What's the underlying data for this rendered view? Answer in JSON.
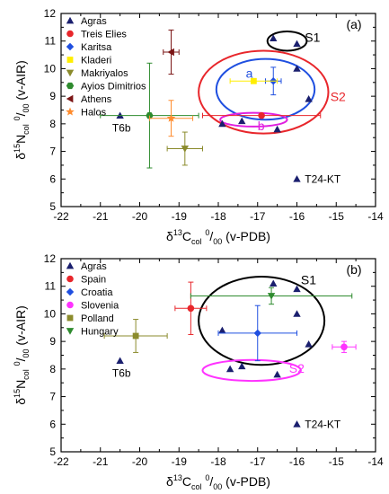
{
  "chart_data": [
    {
      "type": "scatter",
      "panel_label": "(a)",
      "xlabel": "δ13Ccol ‰ (v-PDB)",
      "ylabel": "δ15Ncol ‰ (v-AIR)",
      "xlim": [
        -22,
        -14
      ],
      "ylim": [
        5,
        12
      ],
      "xticks": [
        -22,
        -21,
        -20,
        -19,
        -18,
        -17,
        -16,
        -15,
        -14
      ],
      "yticks": [
        5,
        6,
        7,
        8,
        9,
        10,
        11,
        12
      ],
      "grid": false,
      "legend_position": "top-left",
      "series": [
        {
          "name": "Agras",
          "marker": "triangle",
          "color": "#1a1f6e",
          "points": [
            [
              -16.6,
              11.1
            ],
            [
              -16.0,
              10.9
            ],
            [
              -16.0,
              10.0
            ],
            [
              -15.7,
              8.9
            ],
            [
              -17.9,
              8.0
            ],
            [
              -17.4,
              8.1
            ],
            [
              -16.5,
              7.8
            ],
            [
              -20.5,
              8.3
            ],
            [
              -16.0,
              6.0
            ]
          ]
        },
        {
          "name": "Treis Elies",
          "marker": "circle",
          "color": "#e8262b",
          "points": [
            {
              "x": -16.9,
              "y": 8.3,
              "xerr": 1.5,
              "yerr": 0.0
            }
          ]
        },
        {
          "name": "Karitsa",
          "marker": "diamond",
          "color": "#1f4fe0",
          "points": [
            {
              "x": -16.6,
              "y": 9.55,
              "xerr": 0.2,
              "yerr": 0.5
            }
          ]
        },
        {
          "name": "Kladeri",
          "marker": "square",
          "color": "#ffee00",
          "points": [
            {
              "x": -17.1,
              "y": 9.55,
              "xerr": 0.6,
              "yerr": 0.0
            }
          ]
        },
        {
          "name": "Makriyalos",
          "marker": "triangle-down",
          "color": "#8b8b2c",
          "points": [
            {
              "x": -18.85,
              "y": 7.1,
              "xerr": 0.45,
              "yerr": 0.6
            }
          ]
        },
        {
          "name": "Ayios Dimitrios",
          "marker": "hexagon",
          "color": "#2e8b2e",
          "points": [
            {
              "x": -19.75,
              "y": 8.3,
              "xerr": 1.25,
              "yerr": 1.9
            }
          ]
        },
        {
          "name": "Athens",
          "marker": "triangle-left",
          "color": "#7b1515",
          "points": [
            {
              "x": -19.2,
              "y": 10.6,
              "xerr": 0.2,
              "yerr": 0.8
            }
          ]
        },
        {
          "name": "Halos",
          "marker": "star",
          "color": "#ff8c2e",
          "points": [
            {
              "x": -19.2,
              "y": 8.2,
              "xerr": 0.55,
              "yerr": 0.65
            }
          ]
        }
      ],
      "ellipses": [
        {
          "label": "S1",
          "color": "#000000",
          "cx": -16.25,
          "cy": 11.0,
          "rx": 0.5,
          "ry": 0.35
        },
        {
          "label": "S2",
          "color": "#e8262b",
          "cx": -16.85,
          "cy": 9.15,
          "rx": 1.65,
          "ry": 1.5
        },
        {
          "label": "a",
          "color": "#1f4fe0",
          "cx": -16.8,
          "cy": 9.25,
          "rx": 1.25,
          "ry": 1.1
        },
        {
          "label": "b",
          "color": "#e020e0",
          "cx": -17.1,
          "cy": 8.15,
          "rx": 0.85,
          "ry": 0.25
        }
      ],
      "annotations": [
        {
          "text": "S1",
          "x": -15.8,
          "y": 11.1
        },
        {
          "text": "S2",
          "x": -15.15,
          "y": 8.95
        },
        {
          "text": "a",
          "x": -17.3,
          "y": 9.8
        },
        {
          "text": "b",
          "x": -17.0,
          "y": 7.9
        },
        {
          "text": "T6b",
          "x": -20.7,
          "y": 7.85
        },
        {
          "text": "T24-KT",
          "x": -15.8,
          "y": 6.0
        }
      ]
    },
    {
      "type": "scatter",
      "panel_label": "(b)",
      "xlabel": "δ13Ccol ‰ (v-PDB)",
      "ylabel": "δ15Ncol ‰ (v-AIR)",
      "xlim": [
        -22,
        -14
      ],
      "ylim": [
        5,
        12
      ],
      "xticks": [
        -22,
        -21,
        -20,
        -19,
        -18,
        -17,
        -16,
        -15,
        -14
      ],
      "yticks": [
        5,
        6,
        7,
        8,
        9,
        10,
        11,
        12
      ],
      "grid": false,
      "legend_position": "top-left",
      "series": [
        {
          "name": "Agras",
          "marker": "triangle",
          "color": "#1a1f6e",
          "points": [
            [
              -16.6,
              11.1
            ],
            [
              -16.0,
              10.9
            ],
            [
              -16.0,
              10.0
            ],
            [
              -15.7,
              8.9
            ],
            [
              -17.9,
              9.4
            ],
            [
              -17.7,
              8.0
            ],
            [
              -17.4,
              8.1
            ],
            [
              -16.5,
              7.8
            ],
            [
              -20.5,
              8.3
            ],
            [
              -16.0,
              6.0
            ]
          ]
        },
        {
          "name": "Spain",
          "marker": "circle",
          "color": "#e8262b",
          "points": [
            {
              "x": -18.7,
              "y": 10.2,
              "xerr": 0.4,
              "yerr": 0.95
            }
          ]
        },
        {
          "name": "Croatia",
          "marker": "diamond",
          "color": "#1f4fe0",
          "points": [
            {
              "x": -17.0,
              "y": 9.3,
              "xerr": 1.0,
              "yerr": 1.0
            }
          ]
        },
        {
          "name": "Slovenia",
          "marker": "circle",
          "color": "#ff33ff",
          "points": [
            {
              "x": -14.8,
              "y": 8.8,
              "xerr": 0.3,
              "yerr": 0.2
            }
          ]
        },
        {
          "name": "Polland",
          "marker": "square",
          "color": "#8b8b2c",
          "points": [
            {
              "x": -20.1,
              "y": 9.2,
              "xerr": 0.8,
              "yerr": 0.6
            }
          ]
        },
        {
          "name": "Hungary",
          "marker": "triangle-down",
          "color": "#2e8b2e",
          "points": [
            {
              "x": -16.65,
              "y": 10.65,
              "xerr": 2.05,
              "yerr": 0.3
            }
          ]
        }
      ],
      "ellipses": [
        {
          "label": "S1",
          "color": "#000000",
          "cx": -16.9,
          "cy": 9.75,
          "rx": 1.6,
          "ry": 1.6
        },
        {
          "label": "S2",
          "color": "#ff33ff",
          "cx": -17.15,
          "cy": 7.95,
          "rx": 1.25,
          "ry": 0.38
        }
      ],
      "annotations": [
        {
          "text": "S1",
          "x": -15.9,
          "y": 11.2
        },
        {
          "text": "S2",
          "x": -16.2,
          "y": 8.0
        },
        {
          "text": "T6b",
          "x": -20.7,
          "y": 7.85
        },
        {
          "text": "T24-KT",
          "x": -15.8,
          "y": 6.0
        }
      ]
    }
  ]
}
